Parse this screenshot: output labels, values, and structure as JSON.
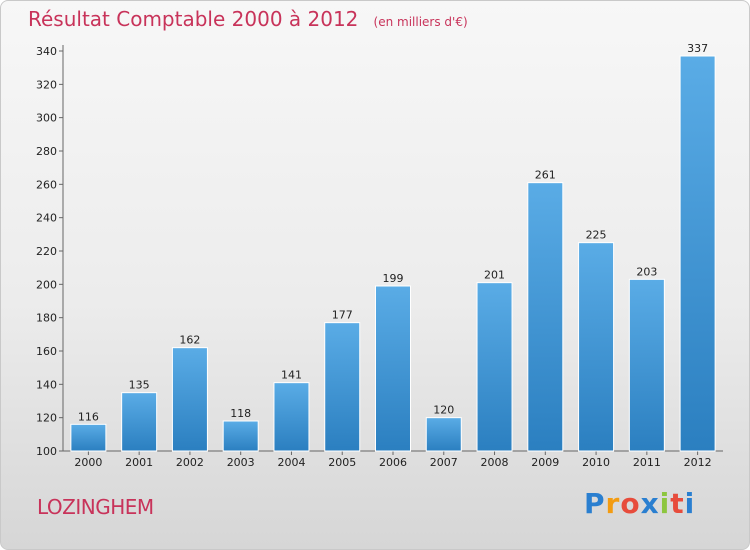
{
  "header": {
    "title": "Résultat Comptable 2000 à 2012",
    "unit": "(en milliers d'€)"
  },
  "footer": {
    "city": "LOZINGHEM",
    "logo": {
      "letters": [
        "P",
        "r",
        "o",
        "x",
        "i",
        "t",
        "i"
      ],
      "colors": [
        "#2a7fd0",
        "#f39c12",
        "#e74c3c",
        "#2a7fd0",
        "#8dc63f",
        "#e74c3c",
        "#2a7fd0"
      ]
    }
  },
  "colors": {
    "bar_light": "#5aace6",
    "bar_dark": "#2b7fc0",
    "title": "#c8335a"
  },
  "chart_data": {
    "type": "bar",
    "categories": [
      "2000",
      "2001",
      "2002",
      "2003",
      "2004",
      "2005",
      "2006",
      "2007",
      "2008",
      "2009",
      "2010",
      "2011",
      "2012"
    ],
    "values": [
      116,
      135,
      162,
      118,
      141,
      177,
      199,
      120,
      201,
      261,
      225,
      203,
      337
    ],
    "yticks": [
      "100",
      "120",
      "140",
      "160",
      "180",
      "200",
      "220",
      "240",
      "260",
      "280",
      "300",
      "320",
      "340"
    ],
    "ylim": [
      100,
      340
    ],
    "grid": false
  }
}
